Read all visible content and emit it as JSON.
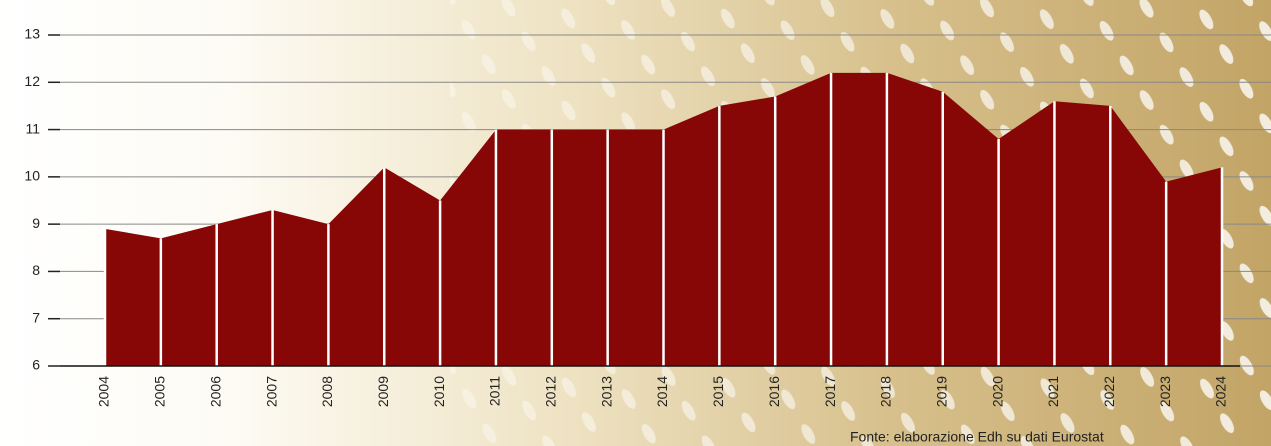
{
  "chart_data": {
    "type": "area",
    "categories": [
      "2004",
      "2005",
      "2006",
      "2007",
      "2008",
      "2009",
      "2010",
      "2011",
      "2012",
      "2013",
      "2014",
      "2015",
      "2016",
      "2017",
      "2018",
      "2019",
      "2020",
      "2021",
      "2022",
      "2023",
      "2024"
    ],
    "values": [
      8.9,
      8.7,
      9.0,
      9.3,
      9.0,
      10.2,
      9.5,
      11.0,
      11.0,
      11.0,
      11.0,
      11.5,
      11.7,
      12.2,
      12.2,
      11.8,
      10.8,
      11.6,
      11.5,
      9.9,
      10.2
    ],
    "color": "#870606",
    "ylim": [
      6,
      13
    ],
    "yticks": [
      6,
      7,
      8,
      9,
      10,
      11,
      12,
      13
    ],
    "grid": true,
    "source": "Fonte: elaborazione Edh su dati Eurostat"
  }
}
